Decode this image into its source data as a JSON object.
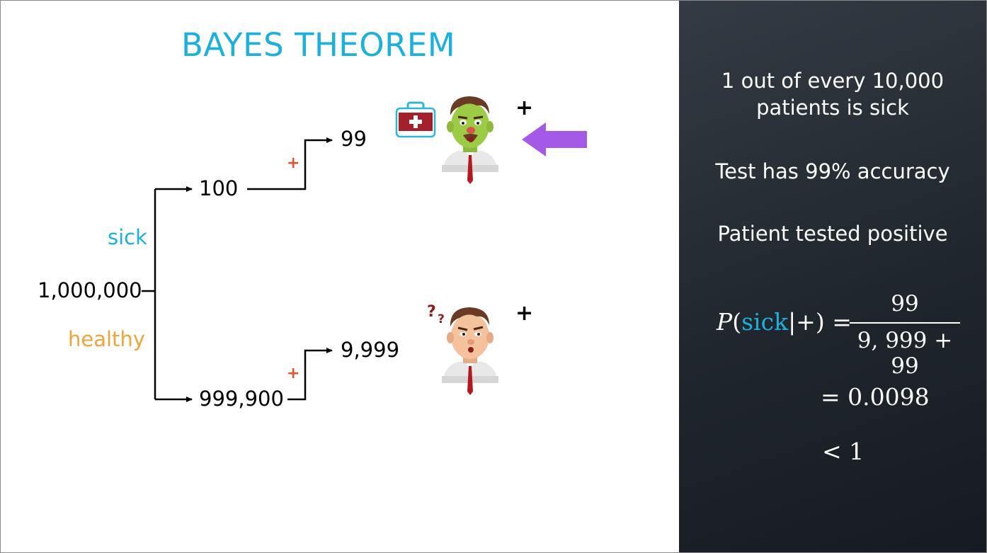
{
  "title": "BAYES THEOREM",
  "tree": {
    "root": "1,000,000",
    "sick_label": "sick",
    "healthy_label": "healthy",
    "sick_count": "100",
    "healthy_count": "999,900",
    "sick_positive": "99",
    "healthy_positive": "9,999",
    "positive_sign": "+",
    "result_sign": "+"
  },
  "facts": {
    "line1a": "1 out of every 10,000",
    "line1b": "patients is sick",
    "line2": "Test has 99% accuracy",
    "line3": "Patient tested positive"
  },
  "formula": {
    "lhs_p": "P",
    "lhs_open": "(",
    "lhs_sick": "sick",
    "lhs_rest": "|+) =",
    "numerator": "99",
    "denominator": "9, 999 + 99",
    "result": "= 0.0098",
    "comparison": "< 1"
  },
  "colors": {
    "accent_blue": "#1cb0dc",
    "healthy_orange": "#f0a43a",
    "plus_red": "#e8512e",
    "arrow_purple": "#a45ae6",
    "panel_dark": "#20262d"
  },
  "icons": [
    "medical-kit-icon",
    "sick-patient-icon",
    "confused-patient-icon",
    "question-marks-icon",
    "left-arrow-icon"
  ]
}
